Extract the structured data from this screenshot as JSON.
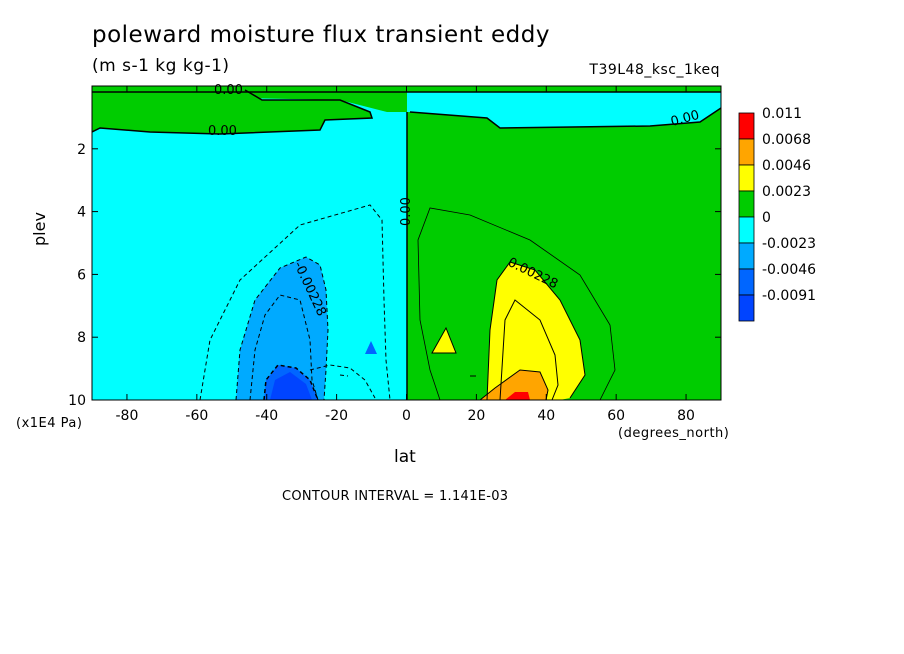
{
  "title": "poleward moisture flux transient eddy",
  "units": "(m s-1 kg kg-1)",
  "dataset": "T39L48_ksc_1keq",
  "contour_interval": "CONTOUR INTERVAL = 1.141E-03",
  "chart_data": {
    "type": "heatmap",
    "xlabel": "lat",
    "ylabel": "plev",
    "x_unit": "(degrees_north)",
    "y_unit": "(x1E4 Pa)",
    "xlim": [
      -90,
      90
    ],
    "ylim": [
      0,
      10
    ],
    "y_inverted": true,
    "x_ticks": [
      "-80",
      "-60",
      "-40",
      "-20",
      "0",
      "20",
      "40",
      "60",
      "80"
    ],
    "y_ticks": [
      "2",
      "4",
      "6",
      "8",
      "10"
    ],
    "legend": {
      "placement": "right",
      "levels": [
        {
          "label": "0.011",
          "color": "#ff0000"
        },
        {
          "label": "0.0068",
          "color": "#ffa500"
        },
        {
          "label": "0.0046",
          "color": "#ffff00"
        },
        {
          "label": "0.0023",
          "color": "#00cc00"
        },
        {
          "label": "0",
          "color": "#00ffff"
        },
        {
          "label": "-0.0023",
          "color": "#00aaff"
        },
        {
          "label": "-0.0046",
          "color": "#0066ff"
        },
        {
          "label": "-0.0091",
          "color": "#0044ff"
        }
      ]
    },
    "contour_labels": [
      {
        "text": "0.00",
        "x": -51,
        "y": 0.05
      },
      {
        "text": "0.00",
        "x": -50,
        "y": 1.3
      },
      {
        "text": "0.00",
        "x": 80,
        "y": 0.9
      },
      {
        "text": "0.00",
        "x": 0,
        "y": 4.0
      },
      {
        "text": "-0.00228",
        "x": -30,
        "y": 7.0
      },
      {
        "text": "0.00228",
        "x": 31,
        "y": 6.5
      }
    ],
    "regions": [
      {
        "name": "upper-green-band",
        "value_range": [
          0,
          0.0023
        ],
        "extent": "p 0-1.3, lat -87 to -20 and p 0-1.5, lat 0 to 87"
      },
      {
        "name": "southern-negative",
        "value_range": [
          -0.0023,
          0
        ],
        "extent": "SH troposphere"
      },
      {
        "name": "northern-positive",
        "value_range": [
          0,
          0.0023
        ],
        "extent": "NH troposphere"
      },
      {
        "name": "sh-min-core",
        "value_range": [
          -0.0091,
          -0.0046
        ],
        "center_lat": -35,
        "center_p": 9.6
      },
      {
        "name": "nh-max-core",
        "value_range": [
          0.0068,
          0.011
        ],
        "center_lat": 32,
        "center_p": 9.9
      }
    ]
  }
}
